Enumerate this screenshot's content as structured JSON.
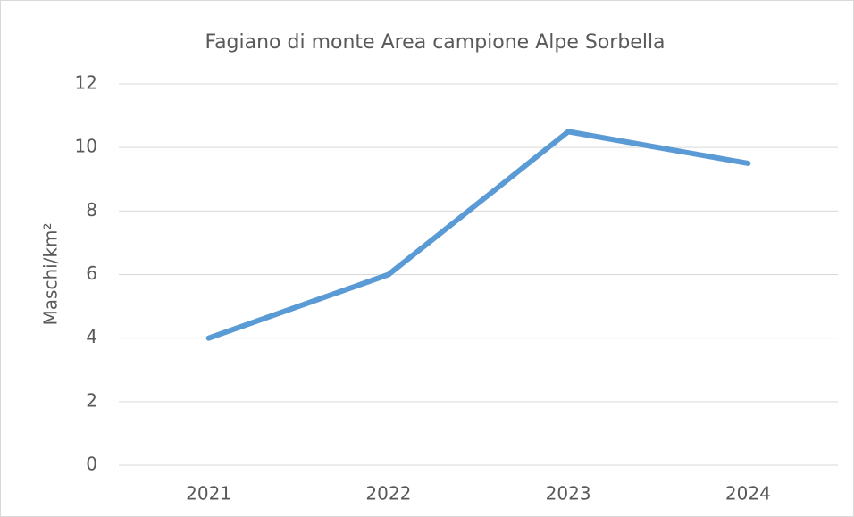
{
  "chart_data": {
    "type": "line",
    "title": "Fagiano di monte Area campione Alpe Sorbella",
    "y_label": "Maschi/km²",
    "categories": [
      "2021",
      "2022",
      "2023",
      "2024"
    ],
    "series": [
      {
        "name": "Maschi/km²",
        "color": "#5b9bd5",
        "values": [
          4,
          6,
          10.5,
          9.5
        ]
      }
    ],
    "ylim": [
      0,
      12
    ],
    "yticks": [
      0,
      2,
      4,
      6,
      8,
      10,
      12
    ],
    "grid": true
  }
}
